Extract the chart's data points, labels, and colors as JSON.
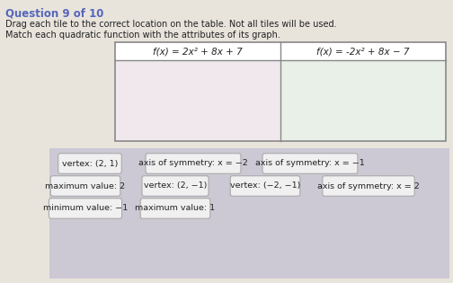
{
  "header_question": "Question 9 of 10",
  "title_line1": "Drag each tile to the correct location on the table. Not all tiles will be used.",
  "title_line2": "Match each quadratic function with the attributes of its graph.",
  "col1_header": "f(x) = 2x² + 8x + 7",
  "col2_header": "f(x) = -2x² + 8x − 7",
  "bg_color": "#e8e4dc",
  "table_bg_left": "#f0e8ec",
  "table_bg_right": "#e8f0e8",
  "table_header_bg": "#ffffff",
  "tile_area_bg": "#ccc8d4",
  "tile_bg": "#f0f0f0",
  "tile_border": "#aaaaaa",
  "tiles_row1": [
    "vertex: (2, 1)",
    "axis of symmetry: x = −2",
    "axis of symmetry: x = −1"
  ],
  "tiles_row2": [
    "maximum value: 2",
    "vertex: (2, −1)",
    "vertex: (−2, −1)",
    "axis of symmetry: x = 2"
  ],
  "tiles_row3": [
    "minimum value: −1",
    "maximum value: 1"
  ],
  "header_color": "#5566bb",
  "text_color": "#222222",
  "table_border_color": "#888888"
}
